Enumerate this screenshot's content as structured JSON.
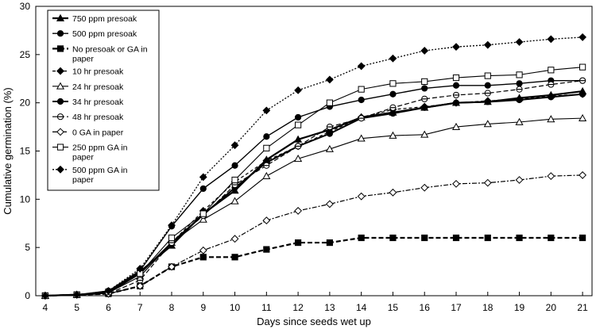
{
  "chart_data": {
    "type": "line",
    "xlabel": "Days since seeds wet up",
    "ylabel": "Cumulative germination (%)",
    "xlim": [
      4,
      21
    ],
    "ylim": [
      0,
      30
    ],
    "x_ticks": [
      4,
      5,
      6,
      7,
      8,
      9,
      10,
      11,
      12,
      13,
      14,
      15,
      16,
      17,
      18,
      19,
      20,
      21
    ],
    "y_ticks": [
      0,
      5,
      10,
      15,
      20,
      25,
      30
    ],
    "grid": false,
    "legend_position": "top-left",
    "x": [
      4,
      5,
      6,
      7,
      8,
      9,
      10,
      11,
      12,
      13,
      14,
      15,
      16,
      17,
      18,
      19,
      20,
      21
    ],
    "series": [
      {
        "name": "750 ppm presoak",
        "values": [
          0,
          0.1,
          0.3,
          2.5,
          5.2,
          8.5,
          10.9,
          14.1,
          16.2,
          17.2,
          18.5,
          19.0,
          19.5,
          20.0,
          20.1,
          20.5,
          20.8,
          21.2
        ],
        "marker": "tri-filled",
        "dash": "solid",
        "width": 2.2
      },
      {
        "name": "500 ppm presoak",
        "values": [
          0,
          0.1,
          0.5,
          2.6,
          7.2,
          11.1,
          13.5,
          16.5,
          18.5,
          19.6,
          20.3,
          20.9,
          21.5,
          21.8,
          21.8,
          22.0,
          22.3,
          22.3
        ],
        "marker": "circle-filled",
        "dash": "solid",
        "width": 1.4
      },
      {
        "name": "No presoak or GA in paper",
        "values": [
          0,
          0.1,
          0.2,
          1.0,
          3.0,
          4.0,
          4.0,
          4.8,
          5.5,
          5.5,
          6.0,
          6.0,
          6.0,
          6.0,
          6.0,
          6.0,
          6.0,
          6.0
        ],
        "marker": "square-filled",
        "dash": "6,3",
        "width": 2.2
      },
      {
        "name": "10 hr presoak",
        "values": [
          0,
          0.1,
          0.4,
          2.4,
          5.5,
          8.8,
          11.8,
          14.0,
          15.5,
          17.0,
          18.5,
          19.3,
          19.6,
          20.0,
          20.2,
          20.4,
          20.7,
          20.9
        ],
        "marker": "diamond-filled",
        "dash": "4,3",
        "width": 1.2
      },
      {
        "name": "24 hr presoak",
        "values": [
          0,
          0.1,
          0.3,
          2.0,
          5.5,
          7.9,
          9.8,
          12.4,
          14.2,
          15.2,
          16.3,
          16.6,
          16.7,
          17.5,
          17.8,
          18.0,
          18.3,
          18.4
        ],
        "marker": "tri-open",
        "dash": "solid",
        "width": 1.1
      },
      {
        "name": "34 hr presoak",
        "values": [
          0,
          0.1,
          0.3,
          2.3,
          5.5,
          8.4,
          11.2,
          13.8,
          15.5,
          16.8,
          18.4,
          18.9,
          19.5,
          20.0,
          20.1,
          20.3,
          20.6,
          20.9
        ],
        "marker": "circle-filled",
        "dash": "solid",
        "width": 2.0
      },
      {
        "name": "48 hr presoak",
        "values": [
          0,
          0.1,
          0.2,
          1.6,
          5.5,
          8.3,
          11.5,
          13.5,
          15.5,
          17.5,
          18.4,
          19.5,
          20.4,
          20.8,
          21.0,
          21.4,
          21.9,
          22.3
        ],
        "marker": "circle-half",
        "dash": "6,3",
        "width": 1.2
      },
      {
        "name": "0 GA in paper",
        "values": [
          0,
          0.1,
          0.2,
          1.0,
          3.0,
          4.7,
          5.9,
          7.8,
          8.8,
          9.5,
          10.3,
          10.7,
          11.2,
          11.6,
          11.7,
          12.0,
          12.4,
          12.5
        ],
        "marker": "diamond-open",
        "dash": "6,2,2,2",
        "width": 1.2
      },
      {
        "name": "250 ppm GA in paper",
        "values": [
          0,
          0.1,
          0.4,
          2.3,
          6.0,
          8.5,
          12.0,
          15.3,
          17.7,
          20.0,
          21.4,
          22.0,
          22.2,
          22.6,
          22.8,
          22.9,
          23.4,
          23.7
        ],
        "marker": "square-open",
        "dash": "solid",
        "width": 1.1
      },
      {
        "name": "500 ppm GA in paper",
        "values": [
          0,
          0.1,
          0.5,
          2.8,
          7.3,
          12.3,
          15.6,
          19.2,
          21.3,
          22.4,
          23.8,
          24.6,
          25.4,
          25.8,
          26.0,
          26.3,
          26.6,
          26.8
        ],
        "marker": "diamond-filled",
        "dash": "2,2",
        "width": 1.3
      }
    ]
  }
}
